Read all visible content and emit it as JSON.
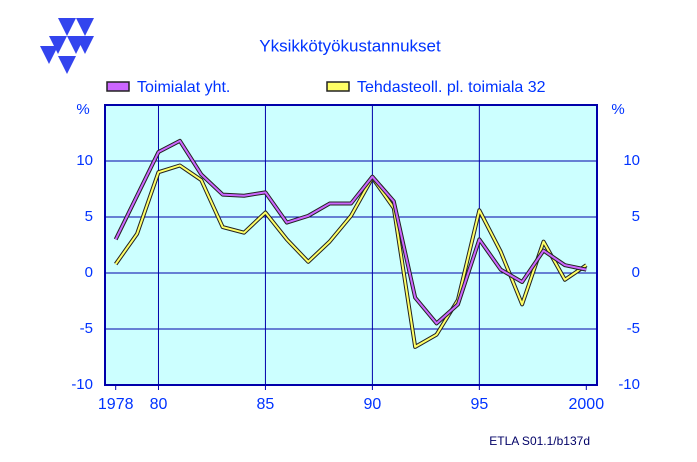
{
  "chart_data": {
    "type": "line",
    "title": "Yksikkötyökustannukset",
    "ylabel": "%",
    "footer": "ETLA S01.1/b137d",
    "x": [
      1978,
      1979,
      1980,
      1981,
      1982,
      1983,
      1984,
      1985,
      1986,
      1987,
      1988,
      1989,
      1990,
      1991,
      1992,
      1993,
      1994,
      1995,
      1996,
      1997,
      1998,
      1999,
      2000
    ],
    "series": [
      {
        "name": "Toimialat yht.",
        "color": "#cc66ff",
        "values": [
          3.0,
          6.9,
          10.8,
          11.8,
          8.8,
          7.0,
          6.9,
          7.2,
          4.5,
          5.1,
          6.2,
          6.2,
          8.6,
          6.4,
          -2.2,
          -4.5,
          -2.8,
          3.0,
          0.3,
          -0.8,
          2.0,
          0.7,
          0.3
        ]
      },
      {
        "name": "Tehdasteoll. pl. toimiala 32",
        "color": "#ffff66",
        "values": [
          0.8,
          3.5,
          9.0,
          9.6,
          8.3,
          4.1,
          3.6,
          5.4,
          3.0,
          1.0,
          2.8,
          5.1,
          8.5,
          5.8,
          -6.6,
          -5.5,
          -2.4,
          5.6,
          1.9,
          -2.8,
          2.8,
          -0.6,
          0.7
        ]
      }
    ],
    "xlim": [
      1977.5,
      2000.5
    ],
    "xticks": [
      1978,
      {
        "value": 1980,
        "label": "80"
      },
      {
        "value": 1985,
        "label": "85"
      },
      {
        "value": 1990,
        "label": "90"
      },
      {
        "value": 1995,
        "label": "95"
      },
      2000
    ],
    "xgrid": [
      1980,
      1985,
      1990,
      1995
    ],
    "ylim": [
      -10,
      15
    ],
    "yticks": [
      -10,
      -5,
      0,
      5,
      10
    ],
    "grid": true
  }
}
